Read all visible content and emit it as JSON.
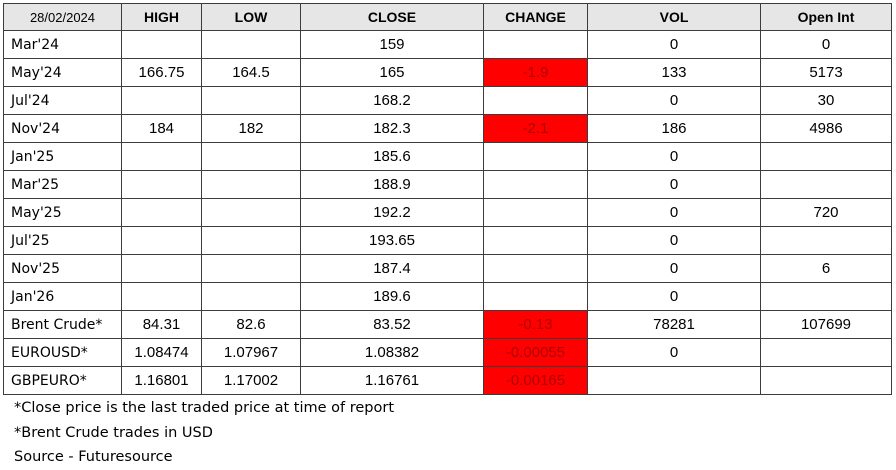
{
  "header": {
    "date": "28/02/2024",
    "high": "HIGH",
    "low": "LOW",
    "close": "CLOSE",
    "change": "CHANGE",
    "vol": "VOL",
    "open_int": "Open Int"
  },
  "colors": {
    "header_bg": "#e7e6e6",
    "negative_change_bg": "#ff0000",
    "negative_change_text": "#b00000"
  },
  "rows": [
    {
      "name": "Mar'24",
      "high": "",
      "low": "",
      "close": "159",
      "change": "",
      "vol": "0",
      "open_int": "0"
    },
    {
      "name": "May'24",
      "high": "166.75",
      "low": "164.5",
      "close": "165",
      "change": "-1.9",
      "vol": "133",
      "open_int": "5173"
    },
    {
      "name": "Jul'24",
      "high": "",
      "low": "",
      "close": "168.2",
      "change": "",
      "vol": "0",
      "open_int": "30"
    },
    {
      "name": "Nov'24",
      "high": "184",
      "low": "182",
      "close": "182.3",
      "change": "-2.1",
      "vol": "186",
      "open_int": "4986"
    },
    {
      "name": "Jan'25",
      "high": "",
      "low": "",
      "close": "185.6",
      "change": "",
      "vol": "0",
      "open_int": ""
    },
    {
      "name": "Mar'25",
      "high": "",
      "low": "",
      "close": "188.9",
      "change": "",
      "vol": "0",
      "open_int": ""
    },
    {
      "name": "May'25",
      "high": "",
      "low": "",
      "close": "192.2",
      "change": "",
      "vol": "0",
      "open_int": "720"
    },
    {
      "name": "Jul'25",
      "high": "",
      "low": "",
      "close": "193.65",
      "change": "",
      "vol": "0",
      "open_int": ""
    },
    {
      "name": "Nov'25",
      "high": "",
      "low": "",
      "close": "187.4",
      "change": "",
      "vol": "0",
      "open_int": "6"
    },
    {
      "name": "Jan'26",
      "high": "",
      "low": "",
      "close": "189.6",
      "change": "",
      "vol": "0",
      "open_int": ""
    },
    {
      "name": "Brent Crude*",
      "high": "84.31",
      "low": "82.6",
      "close": "83.52",
      "change": "-0.13",
      "vol": "78281",
      "open_int": "107699"
    },
    {
      "name": "EUROUSD*",
      "high": "1.08474",
      "low": "1.07967",
      "close": "1.08382",
      "change": "-0.00055",
      "vol": "0",
      "open_int": ""
    },
    {
      "name": "GBPEURO*",
      "high": "1.16801",
      "low": "1.17002",
      "close": "1.16761",
      "change": "-0.00165",
      "vol": "",
      "open_int": ""
    }
  ],
  "notes": {
    "close_note": "*Close price is the last traded price at time of report",
    "brent_note": "*Brent Crude trades in USD",
    "source": "Source -  Futuresource"
  }
}
